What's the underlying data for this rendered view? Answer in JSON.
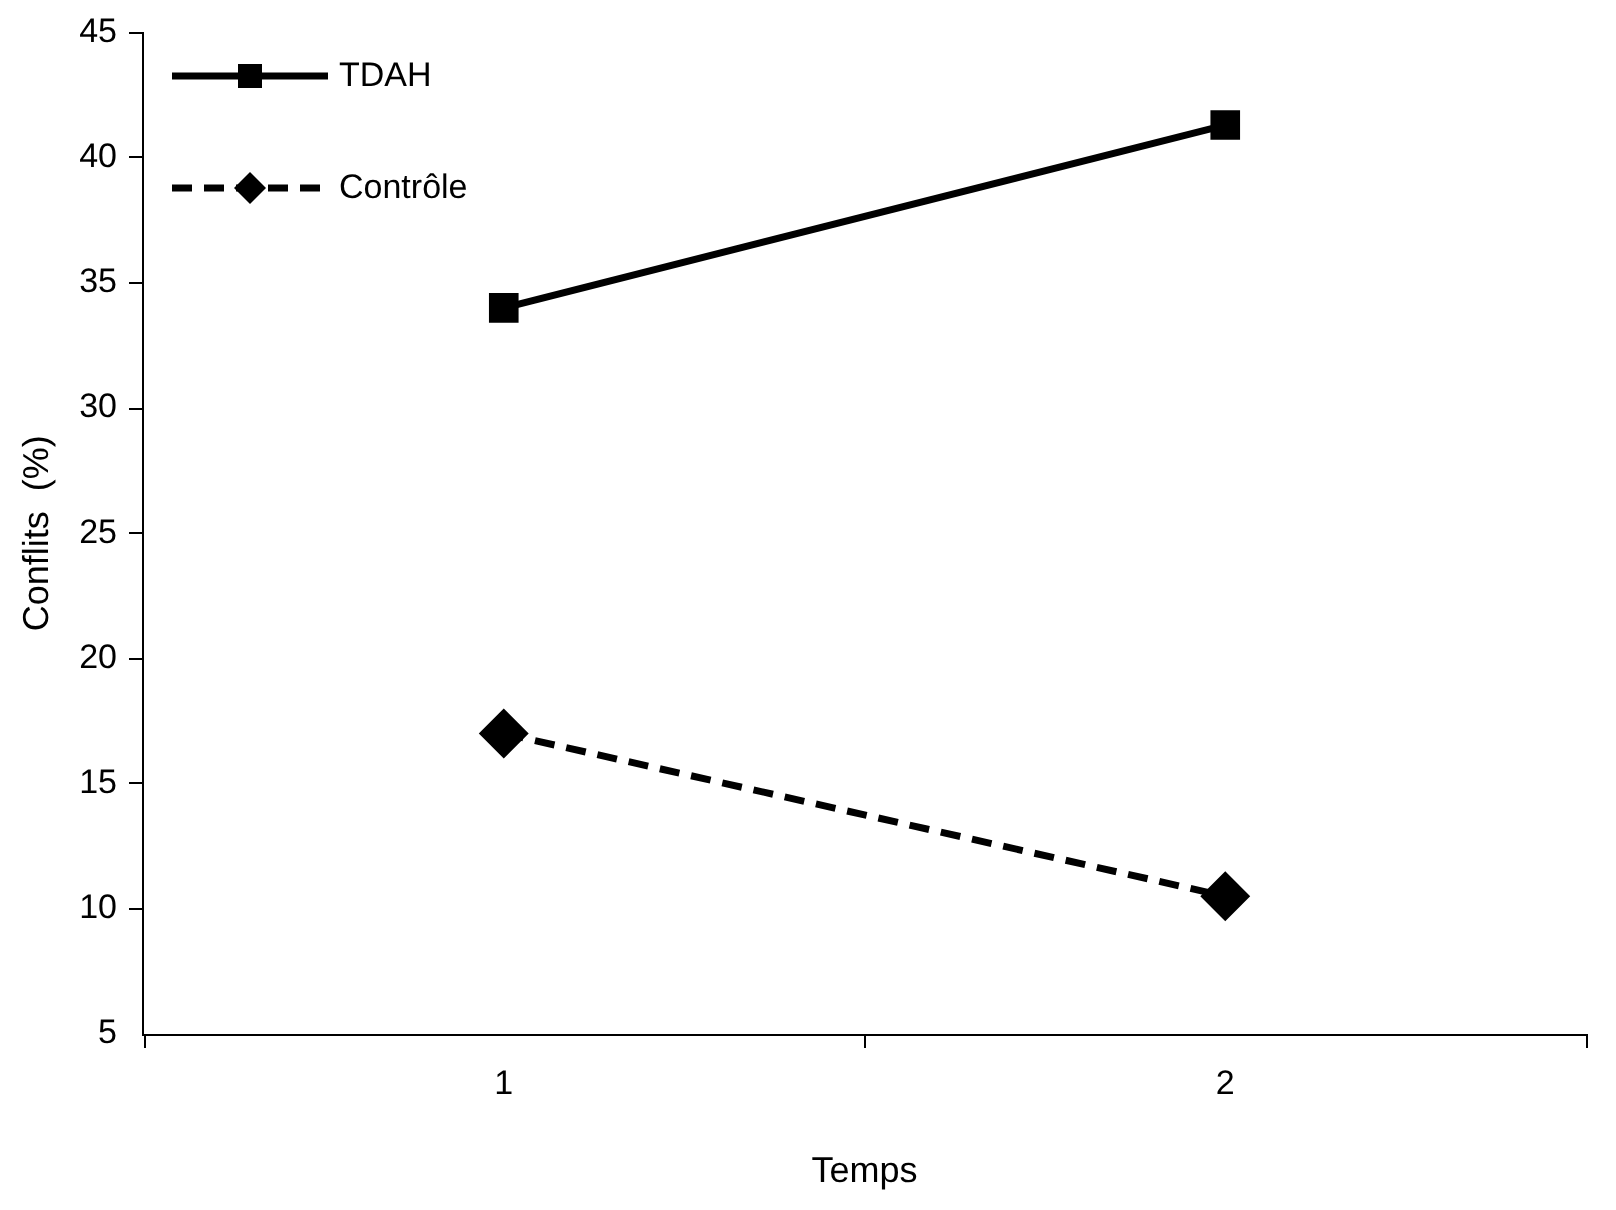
{
  "chart_data": {
    "type": "line",
    "xlabel": "Temps",
    "ylabel": "Conflits  (%)",
    "x": [
      1,
      2
    ],
    "xlim": [
      0.5,
      2.5
    ],
    "xticks": [
      {
        "value": 0.5,
        "label": null
      },
      1,
      {
        "value": 1.5,
        "label": null
      },
      2,
      {
        "value": 2.5,
        "label": null
      }
    ],
    "series": [
      {
        "name": "TDAH",
        "color": "#000000",
        "values": [
          34.0,
          41.3
        ],
        "marker": "square",
        "line_style": "solid"
      },
      {
        "name": "Contrôle",
        "color": "#000000",
        "values": [
          17.0,
          10.5
        ],
        "marker": "diamond",
        "line_style": "dashed"
      }
    ],
    "ylim": [
      5,
      45
    ],
    "yticks": [
      5,
      10,
      15,
      20,
      25,
      30,
      35,
      40,
      45
    ],
    "grid": false,
    "legend": "top left"
  }
}
